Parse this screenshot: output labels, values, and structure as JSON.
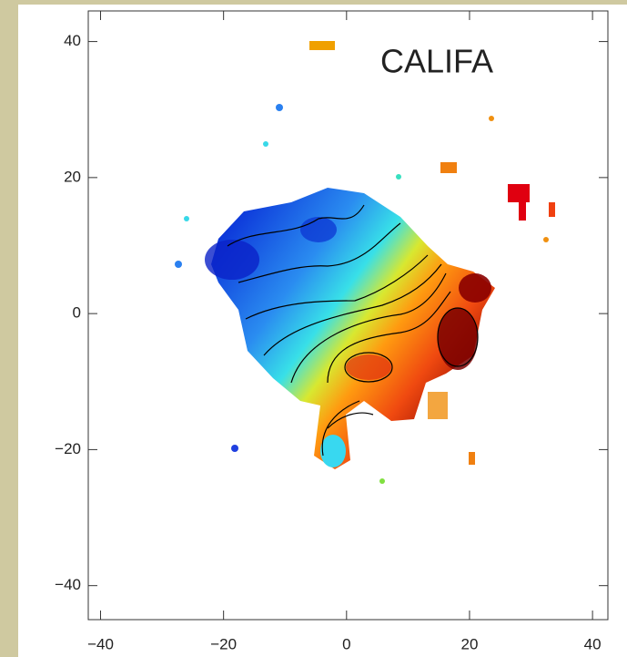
{
  "chart_data": {
    "type": "map",
    "annotation": "CALIFA",
    "xlim": [
      -42,
      42.5
    ],
    "ylim": [
      -45,
      44.5
    ],
    "xticks": [
      {
        "value": -40,
        "label": "−40"
      },
      {
        "value": -20,
        "label": "−20"
      },
      0,
      20,
      40
    ],
    "yticks": [
      {
        "value": -40,
        "label": "−40"
      },
      {
        "value": -20,
        "label": "−20"
      },
      0,
      20,
      40
    ]
  }
}
